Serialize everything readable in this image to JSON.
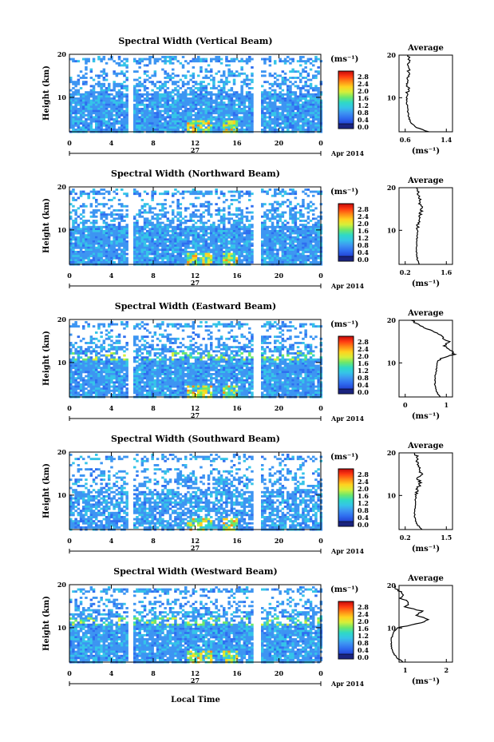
{
  "panels": [
    {
      "title": "Spectral Width (Vertical Beam)",
      "avg_x_ticks": [
        "0.6",
        "1.4"
      ],
      "avg_profile": [
        [
          2,
          1.05
        ],
        [
          3,
          0.82
        ],
        [
          4,
          0.72
        ],
        [
          5,
          0.68
        ],
        [
          6,
          0.66
        ],
        [
          7,
          0.65
        ],
        [
          8,
          0.64
        ],
        [
          9,
          0.63
        ],
        [
          10,
          0.63
        ],
        [
          11,
          0.64
        ],
        [
          12,
          0.66
        ],
        [
          13,
          0.65
        ],
        [
          14,
          0.66
        ],
        [
          15,
          0.67
        ],
        [
          16,
          0.66
        ],
        [
          17,
          0.68
        ],
        [
          18,
          0.67
        ],
        [
          19,
          0.68
        ],
        [
          20,
          0.65
        ]
      ]
    },
    {
      "title": "Spectral Width (Northward Beam)",
      "avg_x_ticks": [
        "0.2",
        "1.6"
      ],
      "avg_profile": [
        [
          2,
          0.68
        ],
        [
          3,
          0.62
        ],
        [
          4,
          0.6
        ],
        [
          5,
          0.58
        ],
        [
          6,
          0.59
        ],
        [
          7,
          0.6
        ],
        [
          8,
          0.6
        ],
        [
          9,
          0.61
        ],
        [
          10,
          0.62
        ],
        [
          11,
          0.63
        ],
        [
          12,
          0.68
        ],
        [
          13,
          0.72
        ],
        [
          14,
          0.7
        ],
        [
          15,
          0.78
        ],
        [
          16,
          0.72
        ],
        [
          17,
          0.68
        ],
        [
          18,
          0.7
        ],
        [
          19,
          0.62
        ],
        [
          20,
          0.58
        ]
      ]
    },
    {
      "title": "Spectral Width (Eastward Beam)",
      "avg_x_ticks": [
        "0",
        "1"
      ],
      "avg_profile": [
        [
          2,
          0.85
        ],
        [
          3,
          0.78
        ],
        [
          4,
          0.74
        ],
        [
          5,
          0.72
        ],
        [
          6,
          0.72
        ],
        [
          7,
          0.73
        ],
        [
          8,
          0.75
        ],
        [
          9,
          0.76
        ],
        [
          10,
          0.78
        ],
        [
          11,
          0.85
        ],
        [
          12,
          1.2
        ],
        [
          13,
          1.1
        ],
        [
          14,
          0.95
        ],
        [
          15,
          1.05
        ],
        [
          16,
          0.9
        ],
        [
          17,
          0.8
        ],
        [
          18,
          0.55
        ],
        [
          19,
          0.3
        ],
        [
          20,
          0.15
        ]
      ]
    },
    {
      "title": "Spectral Width (Southward Beam)",
      "avg_x_ticks": [
        "0.2",
        "1.5"
      ],
      "avg_profile": [
        [
          2,
          0.75
        ],
        [
          3,
          0.6
        ],
        [
          4,
          0.52
        ],
        [
          5,
          0.5
        ],
        [
          6,
          0.5
        ],
        [
          7,
          0.51
        ],
        [
          8,
          0.52
        ],
        [
          9,
          0.52
        ],
        [
          10,
          0.54
        ],
        [
          11,
          0.56
        ],
        [
          12,
          0.62
        ],
        [
          13,
          0.68
        ],
        [
          14,
          0.6
        ],
        [
          15,
          0.72
        ],
        [
          16,
          0.6
        ],
        [
          17,
          0.65
        ],
        [
          18,
          0.55
        ],
        [
          19,
          0.6
        ],
        [
          20,
          0.5
        ]
      ]
    },
    {
      "title": "Spectral Width (Westward Beam)",
      "avg_x_ticks": [
        "1",
        "2"
      ],
      "avg_profile": [
        [
          2,
          0.95
        ],
        [
          3,
          0.8
        ],
        [
          4,
          0.72
        ],
        [
          5,
          0.68
        ],
        [
          6,
          0.66
        ],
        [
          7,
          0.66
        ],
        [
          8,
          0.68
        ],
        [
          9,
          0.72
        ],
        [
          10,
          0.8
        ],
        [
          11,
          1.3
        ],
        [
          12,
          1.6
        ],
        [
          13,
          1.25
        ],
        [
          14,
          1.4
        ],
        [
          15,
          1.0
        ],
        [
          16,
          1.1
        ],
        [
          17,
          0.9
        ],
        [
          18,
          0.95
        ],
        [
          19,
          0.8
        ],
        [
          20,
          0.75
        ]
      ]
    }
  ],
  "axes": {
    "y_label": "Height (km)",
    "y_ticks": [
      "20",
      "10"
    ],
    "time_ticks": [
      "0",
      "4",
      "8",
      "12",
      "16",
      "20",
      "0"
    ],
    "date_day": "27",
    "date_month": "Apr 2014",
    "x_label": "Local Time",
    "avg_title": "Average",
    "avg_y_ticks": [
      "20",
      "10"
    ],
    "avg_x_label": "(ms⁻¹)"
  },
  "colorbar": {
    "unit": "(ms⁻¹)",
    "ticks": [
      "2.8",
      "2.4",
      "2.0",
      "1.6",
      "1.2",
      "0.8",
      "0.4",
      "0.0"
    ]
  },
  "chart_data": {
    "type": "heatmap",
    "x_label": "Local Time",
    "y_label": "Height (km)",
    "x_range": [
      0,
      24
    ],
    "y_range": [
      2,
      20
    ],
    "color_range": [
      0,
      3.0
    ],
    "date": "27 Apr 2014",
    "data_gaps_hours": [
      [
        5.5,
        6.0
      ],
      [
        17.5,
        18.0
      ]
    ],
    "series": [
      {
        "name": "Spectral Width (Vertical Beam)",
        "average_profile_ref": "panels.0.avg_profile"
      },
      {
        "name": "Spectral Width (Northward Beam)",
        "average_profile_ref": "panels.1.avg_profile"
      },
      {
        "name": "Spectral Width (Eastward Beam)",
        "average_profile_ref": "panels.2.avg_profile"
      },
      {
        "name": "Spectral Width (Southward Beam)",
        "average_profile_ref": "panels.3.avg_profile"
      },
      {
        "name": "Spectral Width (Westward Beam)",
        "average_profile_ref": "panels.4.avg_profile"
      }
    ]
  },
  "colors": {
    "colormap": [
      "#1a237e",
      "#2446d6",
      "#2f6ef0",
      "#3d95f2",
      "#35c4e8",
      "#2fd9c6",
      "#6ee86a",
      "#d6ef3a",
      "#ffd21f",
      "#ff8a16",
      "#ff3a12",
      "#c40a0a"
    ],
    "background": "#ffffff",
    "frame": "#000000"
  }
}
